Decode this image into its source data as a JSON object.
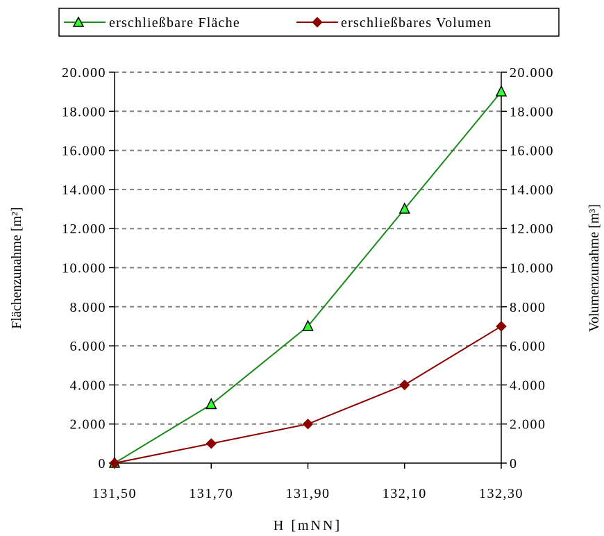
{
  "chart_data": {
    "type": "line",
    "x_categories": [
      "131,50",
      "131,70",
      "131,90",
      "132,10",
      "132,30"
    ],
    "xlabel": "H [mNN]",
    "ylabel_left": "Flächenzunahme [m²]",
    "ylabel_right": "Volumenzunahme [m³]",
    "ylim": [
      0,
      20000
    ],
    "y_ticks": [
      0,
      2000,
      4000,
      6000,
      8000,
      10000,
      12000,
      14000,
      16000,
      18000,
      20000
    ],
    "y_tick_labels": [
      "0",
      "2.000",
      "4.000",
      "6.000",
      "8.000",
      "10.000",
      "12.000",
      "14.000",
      "16.000",
      "18.000",
      "20.000"
    ],
    "grid": "horizontal-dashed",
    "legend_position": "top",
    "series": [
      {
        "name": "erschließbare Fläche",
        "axis": "left",
        "marker": "triangle",
        "color": "#1a8a1a",
        "marker_fill": "#33ff33",
        "values": [
          0,
          3000,
          7000,
          13000,
          19000
        ]
      },
      {
        "name": "erschließbares Volumen",
        "axis": "right",
        "marker": "diamond",
        "color": "#8b0000",
        "marker_fill": "#8b0000",
        "values": [
          0,
          1000,
          2000,
          4000,
          7000
        ]
      }
    ]
  }
}
